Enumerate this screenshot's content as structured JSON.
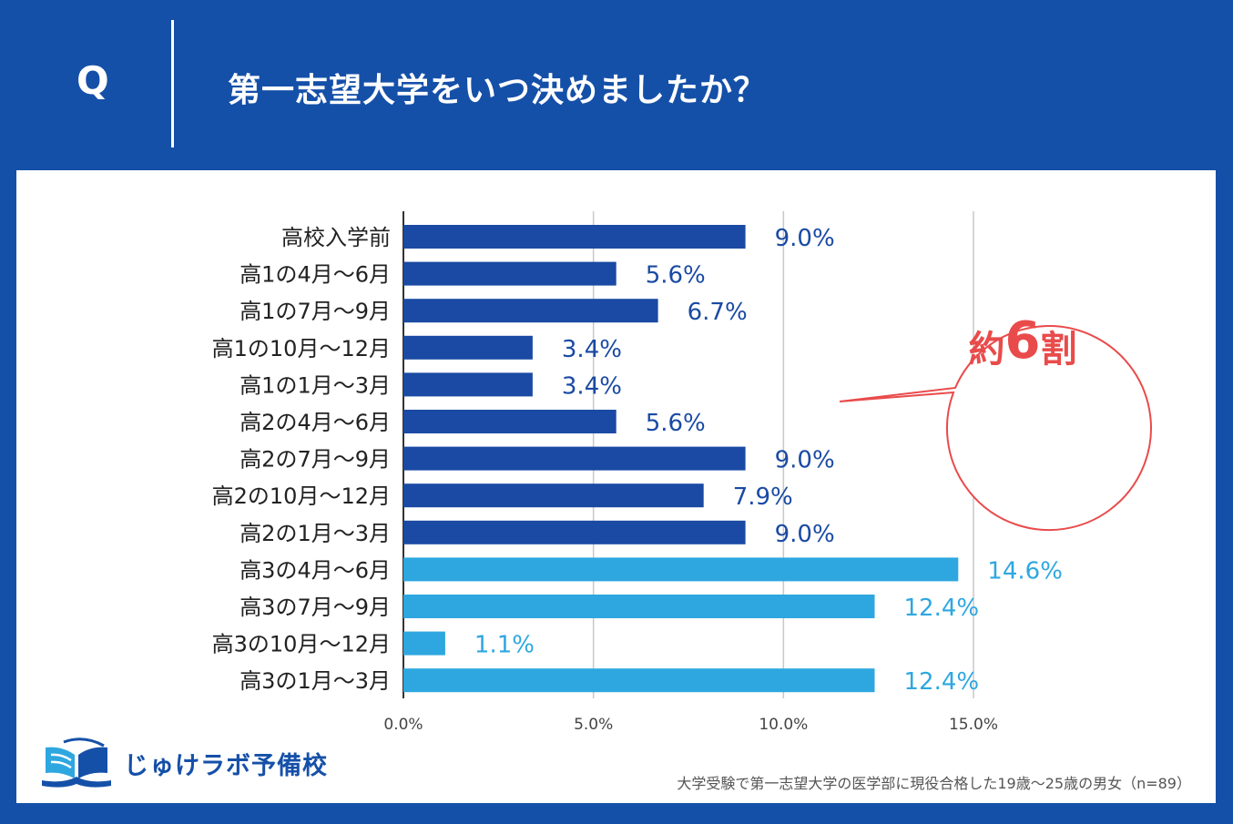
{
  "header": {
    "q_label": "Q",
    "question": "第一志望大学をいつ決めましたか？"
  },
  "colors": {
    "background": "#1550a8",
    "bar_dark": "#1a4aa3",
    "bar_light": "#2ea7e0",
    "callout": "#e94b4b"
  },
  "chart_data": {
    "type": "bar",
    "orientation": "horizontal",
    "categories": [
      "高校入学前",
      "高1の4月～6月",
      "高1の7月～9月",
      "高1の10月～12月",
      "高1の1月～3月",
      "高2の4月～6月",
      "高2の7月～9月",
      "高2の10月～12月",
      "高2の1月～3月",
      "高3の4月～6月",
      "高3の7月～9月",
      "高3の10月～12月",
      "高3の1月～3月"
    ],
    "values": [
      9.0,
      5.6,
      6.7,
      3.4,
      3.4,
      5.6,
      9.0,
      7.9,
      9.0,
      14.6,
      12.4,
      1.1,
      12.4
    ],
    "value_labels": [
      "9.0%",
      "5.6%",
      "6.7%",
      "3.4%",
      "3.4%",
      "5.6%",
      "9.0%",
      "7.9%",
      "9.0%",
      "14.6%",
      "12.4%",
      "1.1%",
      "12.4%"
    ],
    "highlight_group": [
      false,
      false,
      false,
      false,
      false,
      false,
      false,
      false,
      false,
      true,
      true,
      true,
      true
    ],
    "xlim": [
      0,
      15
    ],
    "xticks": [
      0,
      5,
      10,
      15
    ],
    "xtick_labels": [
      "0.0%",
      "5.0%",
      "10.0%",
      "15.0%"
    ],
    "grid": true,
    "xlabel": "",
    "ylabel": ""
  },
  "callout": {
    "prefix": "約",
    "number": "6",
    "suffix": "割"
  },
  "logo": {
    "name": "じゅけラボ予備校",
    "icon": "open-book-icon"
  },
  "footnote": "大学受験で第一志望大学の医学部に現役合格した19歳～25歳の男女（n=89）"
}
